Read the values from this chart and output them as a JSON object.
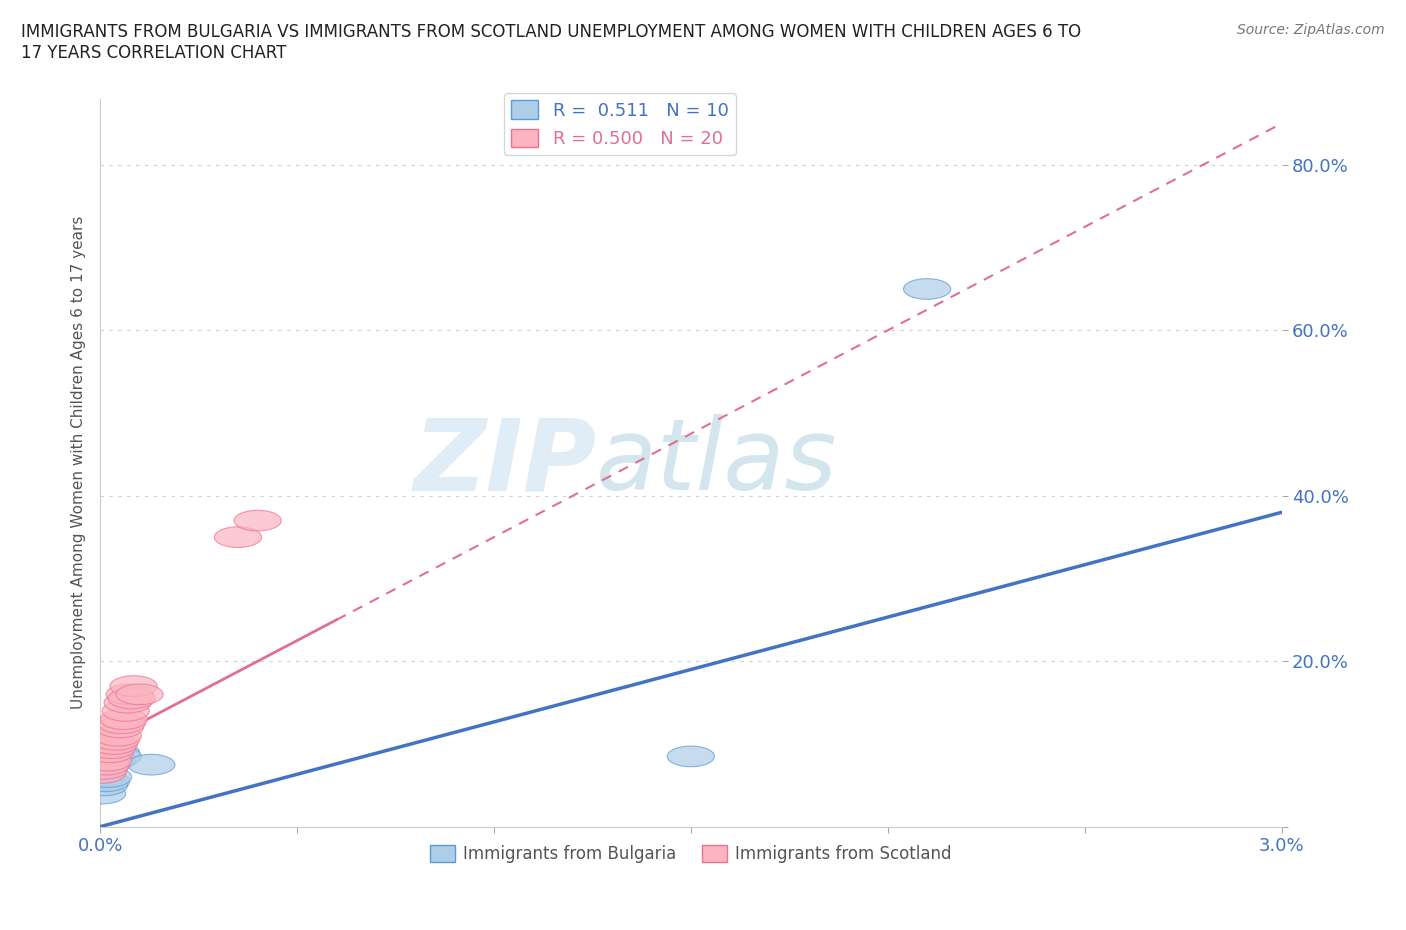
{
  "title": "IMMIGRANTS FROM BULGARIA VS IMMIGRANTS FROM SCOTLAND UNEMPLOYMENT AMONG WOMEN WITH CHILDREN AGES 6 TO\n17 YEARS CORRELATION CHART",
  "source": "Source: ZipAtlas.com",
  "ylabel": "Unemployment Among Women with Children Ages 6 to 17 years",
  "xlim": [
    0.0,
    0.03
  ],
  "ylim": [
    0.0,
    0.88
  ],
  "yticks": [
    0.0,
    0.2,
    0.4,
    0.6,
    0.8
  ],
  "ytick_labels": [
    "",
    "20.0%",
    "40.0%",
    "60.0%",
    "80.0%"
  ],
  "xticks": [
    0.0,
    0.005,
    0.01,
    0.015,
    0.02,
    0.025,
    0.03
  ],
  "xtick_labels": [
    "0.0%",
    "",
    "",
    "",
    "",
    "",
    "3.0%"
  ],
  "bulgaria_x": [
    5e-05,
    0.0001,
    0.00015,
    0.0002,
    0.0003,
    0.0004,
    0.00045,
    0.0013,
    0.015,
    0.021
  ],
  "bulgaria_y": [
    0.04,
    0.05,
    0.055,
    0.06,
    0.08,
    0.09,
    0.085,
    0.075,
    0.085,
    0.65
  ],
  "scotland_x": [
    5e-05,
    0.0001,
    0.00015,
    0.0002,
    0.00025,
    0.0003,
    0.00035,
    0.0004,
    0.00045,
    0.0005,
    0.00055,
    0.0006,
    0.00065,
    0.0007,
    0.00075,
    0.0008,
    0.00085,
    0.001,
    0.0035,
    0.004
  ],
  "scotland_y": [
    0.065,
    0.07,
    0.075,
    0.08,
    0.09,
    0.095,
    0.1,
    0.105,
    0.11,
    0.12,
    0.125,
    0.13,
    0.14,
    0.15,
    0.16,
    0.155,
    0.17,
    0.16,
    0.35,
    0.37
  ],
  "bulgaria_color": "#aecde8",
  "scotland_color": "#fbb4c0",
  "bulgaria_edge_color": "#5b9bd5",
  "scotland_edge_color": "#f07090",
  "bulgaria_line_color": "#4472c4",
  "scotland_line_color": "#e07090",
  "legend_R_bulgaria": "0.511",
  "legend_N_bulgaria": "10",
  "legend_R_scotland": "0.500",
  "legend_N_scotland": "20",
  "background_color": "#ffffff",
  "grid_color": "#d0d0d0"
}
